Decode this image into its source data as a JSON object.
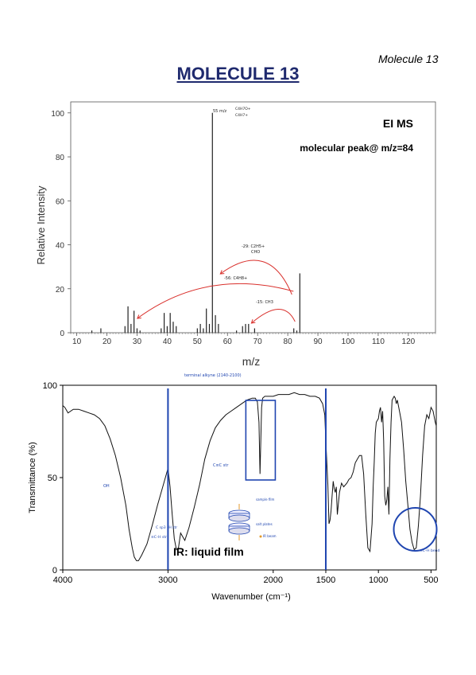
{
  "page": {
    "corner_label": "Molecule 13",
    "title": "MOLECULE 13"
  },
  "chart_data": [
    {
      "type": "bar",
      "title": "",
      "xlabel": "m/z",
      "ylabel": "Relative Intensity",
      "xlim": [
        8,
        129
      ],
      "ylim": [
        0,
        105
      ],
      "xticks": [
        10,
        20,
        30,
        40,
        50,
        60,
        70,
        80,
        90,
        100,
        110,
        120
      ],
      "yticks": [
        0,
        20,
        40,
        60,
        80,
        100
      ],
      "annotations": {
        "spectrum_type": "EI MS",
        "molecular_peak": "molecular peak@ m/z=84",
        "base_peak_note": "55 m/z",
        "base_peak_formula_1": "C4H7O+",
        "base_peak_formula_2": "C4H7+",
        "loss_29": "-29: C2H5+",
        "loss_29b": "CHO",
        "loss_56": "-56: C4H8+",
        "loss_15": "-15: CH3"
      },
      "series": [
        {
          "x": [
            15,
            18,
            26,
            27,
            28,
            29,
            30,
            31,
            38,
            39,
            40,
            41,
            42,
            43,
            50,
            51,
            52,
            53,
            54,
            55,
            56,
            57,
            63,
            65,
            66,
            67,
            69,
            82,
            83,
            84
          ],
          "values": [
            1,
            2,
            3,
            12,
            4,
            10,
            2,
            1,
            2,
            9,
            3,
            9,
            5,
            3,
            2,
            4,
            2,
            11,
            4,
            100,
            8,
            4,
            1,
            3,
            4,
            4,
            2,
            2,
            1,
            27
          ]
        }
      ],
      "arrow_color": "#d9302c"
    },
    {
      "type": "line",
      "title": "",
      "xlabel": "Wavenumber (cm⁻¹)",
      "ylabel": "Transmittance (%)",
      "xlim": [
        4000,
        450
      ],
      "ylim": [
        0,
        100
      ],
      "xticks": [
        4000,
        3000,
        2000,
        1500,
        1000,
        500
      ],
      "yticks": [
        0,
        50,
        100
      ],
      "annotations": {
        "method": "IR: liquid film",
        "oh_label": "OH",
        "csc_label": "C≡C str",
        "top_note": "terminal alkyne (2140-2100)",
        "csp3h_label": "C sp3 –H str",
        "csph_label": "≡C–H str",
        "bend_label": "≡C–H bend",
        "cell_label_1": "sample film",
        "cell_label_2": "salt plates",
        "cell_label_3": "IR beam"
      },
      "marker_color": "#1f45b0",
      "series": [
        {
          "x": [
            4000,
            3980,
            3950,
            3900,
            3850,
            3800,
            3750,
            3700,
            3650,
            3600,
            3550,
            3500,
            3450,
            3400,
            3370,
            3340,
            3320,
            3300,
            3280,
            3250,
            3200,
            3150,
            3100,
            3050,
            3000,
            2980,
            2960,
            2940,
            2920,
            2900,
            2880,
            2860,
            2840,
            2800,
            2750,
            2700,
            2650,
            2600,
            2550,
            2500,
            2450,
            2400,
            2350,
            2300,
            2250,
            2200,
            2170,
            2150,
            2135,
            2125,
            2118,
            2110,
            2100,
            2080,
            2050,
            2000,
            1950,
            1900,
            1850,
            1800,
            1750,
            1700,
            1650,
            1600,
            1560,
            1530,
            1510,
            1500,
            1480,
            1470,
            1460,
            1450,
            1440,
            1430,
            1420,
            1410,
            1400,
            1390,
            1370,
            1350,
            1330,
            1300,
            1280,
            1260,
            1240,
            1220,
            1200,
            1180,
            1160,
            1140,
            1120,
            1100,
            1080,
            1060,
            1050,
            1040,
            1030,
            1020,
            1000,
            990,
            980,
            970,
            960,
            950,
            940,
            930,
            920,
            910,
            900,
            890,
            880,
            870,
            860,
            850,
            840,
            830,
            820,
            800,
            780,
            760,
            740,
            720,
            700,
            680,
            660,
            640,
            620,
            600,
            580,
            560,
            540,
            520,
            500,
            480,
            460,
            450
          ],
          "values": [
            89,
            88,
            85,
            87,
            87,
            86,
            85,
            84,
            82,
            78,
            71,
            62,
            50,
            35,
            22,
            12,
            7,
            5,
            5,
            8,
            14,
            24,
            35,
            45,
            55,
            45,
            30,
            17,
            11,
            12,
            20,
            18,
            16,
            23,
            34,
            46,
            60,
            70,
            77,
            81,
            84,
            86,
            88,
            90,
            92,
            93,
            93,
            91,
            80,
            52,
            70,
            88,
            93,
            94,
            94,
            94,
            95,
            95,
            95,
            96,
            95,
            95,
            94,
            94,
            93,
            90,
            84,
            70,
            46,
            25,
            27,
            32,
            40,
            48,
            44,
            42,
            45,
            30,
            42,
            47,
            45,
            47,
            49,
            50,
            53,
            58,
            60,
            62,
            62,
            52,
            30,
            12,
            10,
            25,
            45,
            58,
            74,
            80,
            82,
            86,
            88,
            80,
            86,
            70,
            40,
            35,
            38,
            45,
            30,
            60,
            80,
            92,
            93,
            94,
            93,
            90,
            92,
            86,
            80,
            65,
            48,
            35,
            22,
            15,
            11,
            12,
            24,
            40,
            62,
            78,
            84,
            82,
            88,
            86,
            80,
            78
          ]
        }
      ]
    }
  ]
}
